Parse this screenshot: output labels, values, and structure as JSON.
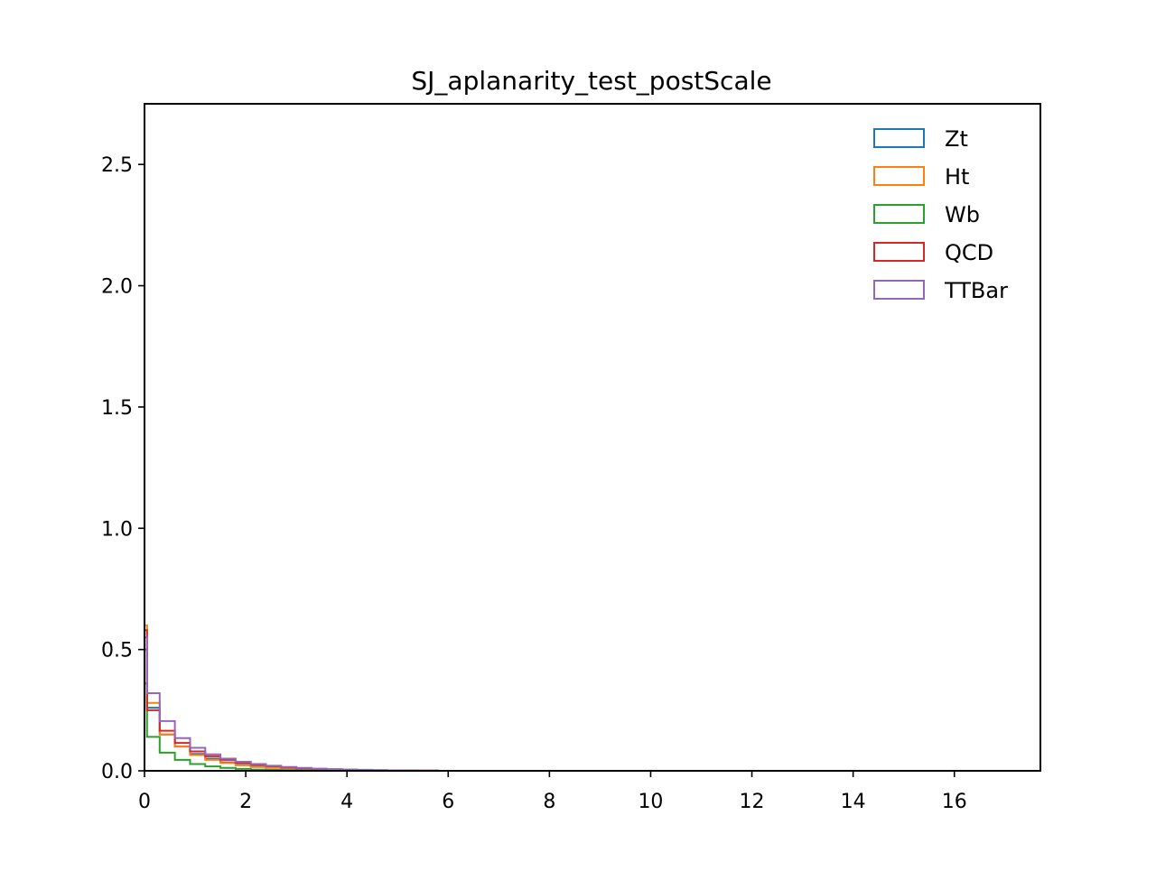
{
  "chart_data": {
    "type": "histogram",
    "title": "SJ_aplanarity_test_postScale",
    "xlabel": "",
    "ylabel": "",
    "xlim": [
      0,
      17.7
    ],
    "ylim": [
      0,
      2.75
    ],
    "x_ticks": [
      0,
      2,
      4,
      6,
      8,
      10,
      12,
      14,
      16
    ],
    "y_ticks": [
      0.0,
      0.5,
      1.0,
      1.5,
      2.0,
      2.5
    ],
    "x_tick_labels": [
      "0",
      "2",
      "4",
      "6",
      "8",
      "10",
      "12",
      "14",
      "16"
    ],
    "y_tick_labels": [
      "0.0",
      "0.5",
      "1.0",
      "1.5",
      "2.0",
      "2.5"
    ],
    "grid": false,
    "legend_position": "top-right",
    "bin_edges": [
      0,
      0.05,
      0.3,
      0.6,
      0.9,
      1.2,
      1.5,
      1.8,
      2.1,
      2.4,
      2.7,
      3.0,
      3.3,
      3.6,
      3.9,
      4.2,
      4.5,
      4.8,
      5.1,
      5.4,
      5.8
    ],
    "series": [
      {
        "name": "Zt",
        "color": "#1f77b4",
        "values": [
          0.5,
          0.26,
          0.15,
          0.1,
          0.07,
          0.05,
          0.035,
          0.025,
          0.018,
          0.013,
          0.01,
          0.007,
          0.005,
          0.004,
          0.003,
          0.002,
          0.0015,
          0.001,
          0.0007,
          0.0005
        ]
      },
      {
        "name": "Ht",
        "color": "#ff7f0e",
        "values": [
          0.6,
          0.28,
          0.15,
          0.1,
          0.065,
          0.045,
          0.032,
          0.023,
          0.016,
          0.012,
          0.008,
          0.006,
          0.004,
          0.003,
          0.002,
          0.0015,
          0.001,
          0.0007,
          0.0005,
          0.0003
        ]
      },
      {
        "name": "Wb",
        "color": "#2ca02c",
        "values": [
          0.36,
          0.14,
          0.075,
          0.045,
          0.028,
          0.018,
          0.012,
          0.008,
          0.005,
          0.0035,
          0.0025,
          0.0018,
          0.0012,
          0.0008,
          0.0006,
          0.0004,
          0.0003,
          0.0002,
          0.0001,
          0.0001
        ]
      },
      {
        "name": "QCD",
        "color": "#d62728",
        "values": [
          0.58,
          0.25,
          0.165,
          0.115,
          0.08,
          0.06,
          0.045,
          0.033,
          0.025,
          0.019,
          0.014,
          0.01,
          0.008,
          0.006,
          0.0045,
          0.0035,
          0.0025,
          0.0018,
          0.0012,
          0.0008
        ]
      },
      {
        "name": "TTBar",
        "color": "#9467bd",
        "values": [
          0.55,
          0.32,
          0.205,
          0.135,
          0.095,
          0.068,
          0.05,
          0.037,
          0.028,
          0.021,
          0.016,
          0.012,
          0.009,
          0.007,
          0.005,
          0.004,
          0.003,
          0.002,
          0.0015,
          0.001
        ]
      }
    ]
  }
}
